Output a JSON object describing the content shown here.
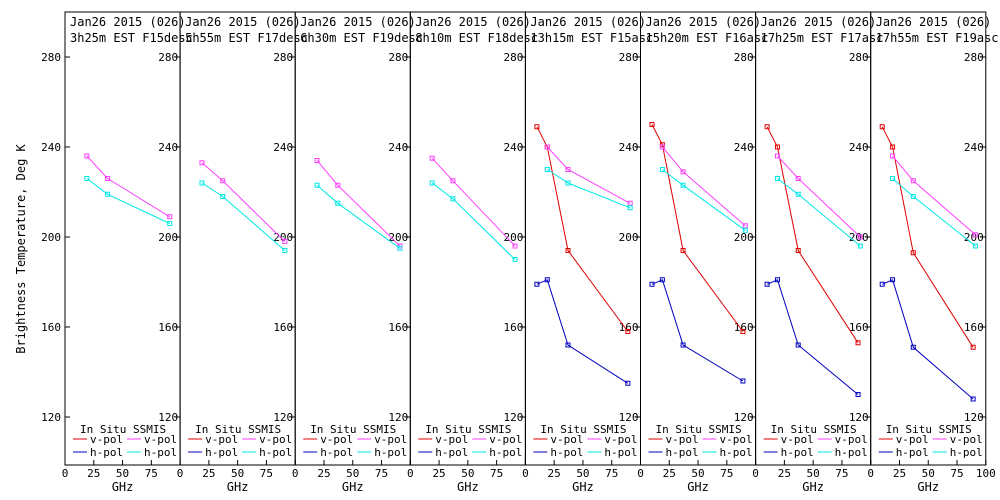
{
  "chart_data": {
    "type": "line",
    "ylabel": "Brightness Temperature, Deg K",
    "xlabel": "GHz",
    "ylim": [
      108,
      295
    ],
    "yticks": [
      120,
      160,
      200,
      240,
      280
    ],
    "xlim": [
      0,
      100
    ],
    "xticks": [
      0,
      25,
      50,
      75,
      100
    ],
    "xtick_labels": [
      "0",
      "25",
      "50",
      "75",
      "100"
    ],
    "legend": {
      "in_situ_title": "In Situ",
      "ssmis_title": "SSMIS",
      "vpol": "v-pol",
      "hpol": "h-pol",
      "colors": {
        "insitu_v": "#e00000",
        "insitu_h": "#0000c0",
        "ssmis_v": "#ff40ff",
        "ssmis_h": "#00e8e8"
      }
    },
    "panels": [
      {
        "date": "Jan26 2015 (026)",
        "time": "3h25m EST F15desc",
        "series": [
          {
            "name": "SSMIS v-pol",
            "x": [
              19,
              37,
              91
            ],
            "y": [
              236,
              226,
              209
            ]
          },
          {
            "name": "SSMIS h-pol",
            "x": [
              19,
              37,
              91
            ],
            "y": [
              226,
              219,
              206
            ]
          }
        ]
      },
      {
        "date": "Jan26 2015 (026)",
        "time": "5h55m EST F17desc",
        "series": [
          {
            "name": "SSMIS v-pol",
            "x": [
              19,
              37,
              91
            ],
            "y": [
              233,
              225,
              198
            ]
          },
          {
            "name": "SSMIS h-pol",
            "x": [
              19,
              37,
              91
            ],
            "y": [
              224,
              218,
              194
            ]
          }
        ]
      },
      {
        "date": "Jan26 2015 (026)",
        "time": "6h30m EST F19desc",
        "series": [
          {
            "name": "SSMIS v-pol",
            "x": [
              19,
              37,
              91
            ],
            "y": [
              234,
              223,
              196
            ]
          },
          {
            "name": "SSMIS h-pol",
            "x": [
              19,
              37,
              91
            ],
            "y": [
              223,
              215,
              195
            ]
          }
        ]
      },
      {
        "date": "Jan26 2015 (026)",
        "time": "8h10m EST F18desc",
        "series": [
          {
            "name": "SSMIS v-pol",
            "x": [
              19,
              37,
              91
            ],
            "y": [
              235,
              225,
              196
            ]
          },
          {
            "name": "SSMIS h-pol",
            "x": [
              19,
              37,
              91
            ],
            "y": [
              224,
              217,
              190
            ]
          }
        ]
      },
      {
        "date": "Jan26 2015 (026)",
        "time": "13h15m EST F15asc",
        "series": [
          {
            "name": "In Situ v-pol",
            "x": [
              10,
              19,
              37,
              89
            ],
            "y": [
              249,
              240,
              194,
              158
            ]
          },
          {
            "name": "In Situ h-pol",
            "x": [
              10,
              19,
              37,
              89
            ],
            "y": [
              179,
              181,
              152,
              135
            ]
          },
          {
            "name": "SSMIS v-pol",
            "x": [
              19,
              37,
              91
            ],
            "y": [
              240,
              230,
              215
            ]
          },
          {
            "name": "SSMIS h-pol",
            "x": [
              19,
              37,
              91
            ],
            "y": [
              230,
              224,
              213
            ]
          }
        ]
      },
      {
        "date": "Jan26 2015 (026)",
        "time": "15h20m EST F16asc",
        "series": [
          {
            "name": "In Situ v-pol",
            "x": [
              10,
              19,
              37,
              89
            ],
            "y": [
              250,
              241,
              194,
              158
            ]
          },
          {
            "name": "In Situ h-pol",
            "x": [
              10,
              19,
              37,
              89
            ],
            "y": [
              179,
              181,
              152,
              136
            ]
          },
          {
            "name": "SSMIS v-pol",
            "x": [
              19,
              37,
              91
            ],
            "y": [
              240,
              229,
              205
            ]
          },
          {
            "name": "SSMIS h-pol",
            "x": [
              19,
              37,
              91
            ],
            "y": [
              230,
              223,
              203
            ]
          }
        ]
      },
      {
        "date": "Jan26 2015 (026)",
        "time": "17h25m EST F17asc",
        "series": [
          {
            "name": "In Situ v-pol",
            "x": [
              10,
              19,
              37,
              89
            ],
            "y": [
              249,
              240,
              194,
              153
            ]
          },
          {
            "name": "In Situ h-pol",
            "x": [
              10,
              19,
              37,
              89
            ],
            "y": [
              179,
              181,
              152,
              130
            ]
          },
          {
            "name": "SSMIS v-pol",
            "x": [
              19,
              37,
              91
            ],
            "y": [
              236,
              226,
              200
            ]
          },
          {
            "name": "SSMIS h-pol",
            "x": [
              19,
              37,
              91
            ],
            "y": [
              226,
              219,
              196
            ]
          }
        ]
      },
      {
        "date": "Jan26 2015 (026)",
        "time": "17h55m EST F19asc",
        "series": [
          {
            "name": "In Situ v-pol",
            "x": [
              10,
              19,
              37,
              89
            ],
            "y": [
              249,
              240,
              193,
              151
            ]
          },
          {
            "name": "In Situ h-pol",
            "x": [
              10,
              19,
              37,
              89
            ],
            "y": [
              179,
              181,
              151,
              128
            ]
          },
          {
            "name": "SSMIS v-pol",
            "x": [
              19,
              37,
              91
            ],
            "y": [
              236,
              225,
              201
            ]
          },
          {
            "name": "SSMIS h-pol",
            "x": [
              19,
              37,
              91
            ],
            "y": [
              226,
              218,
              196
            ]
          }
        ]
      }
    ]
  }
}
